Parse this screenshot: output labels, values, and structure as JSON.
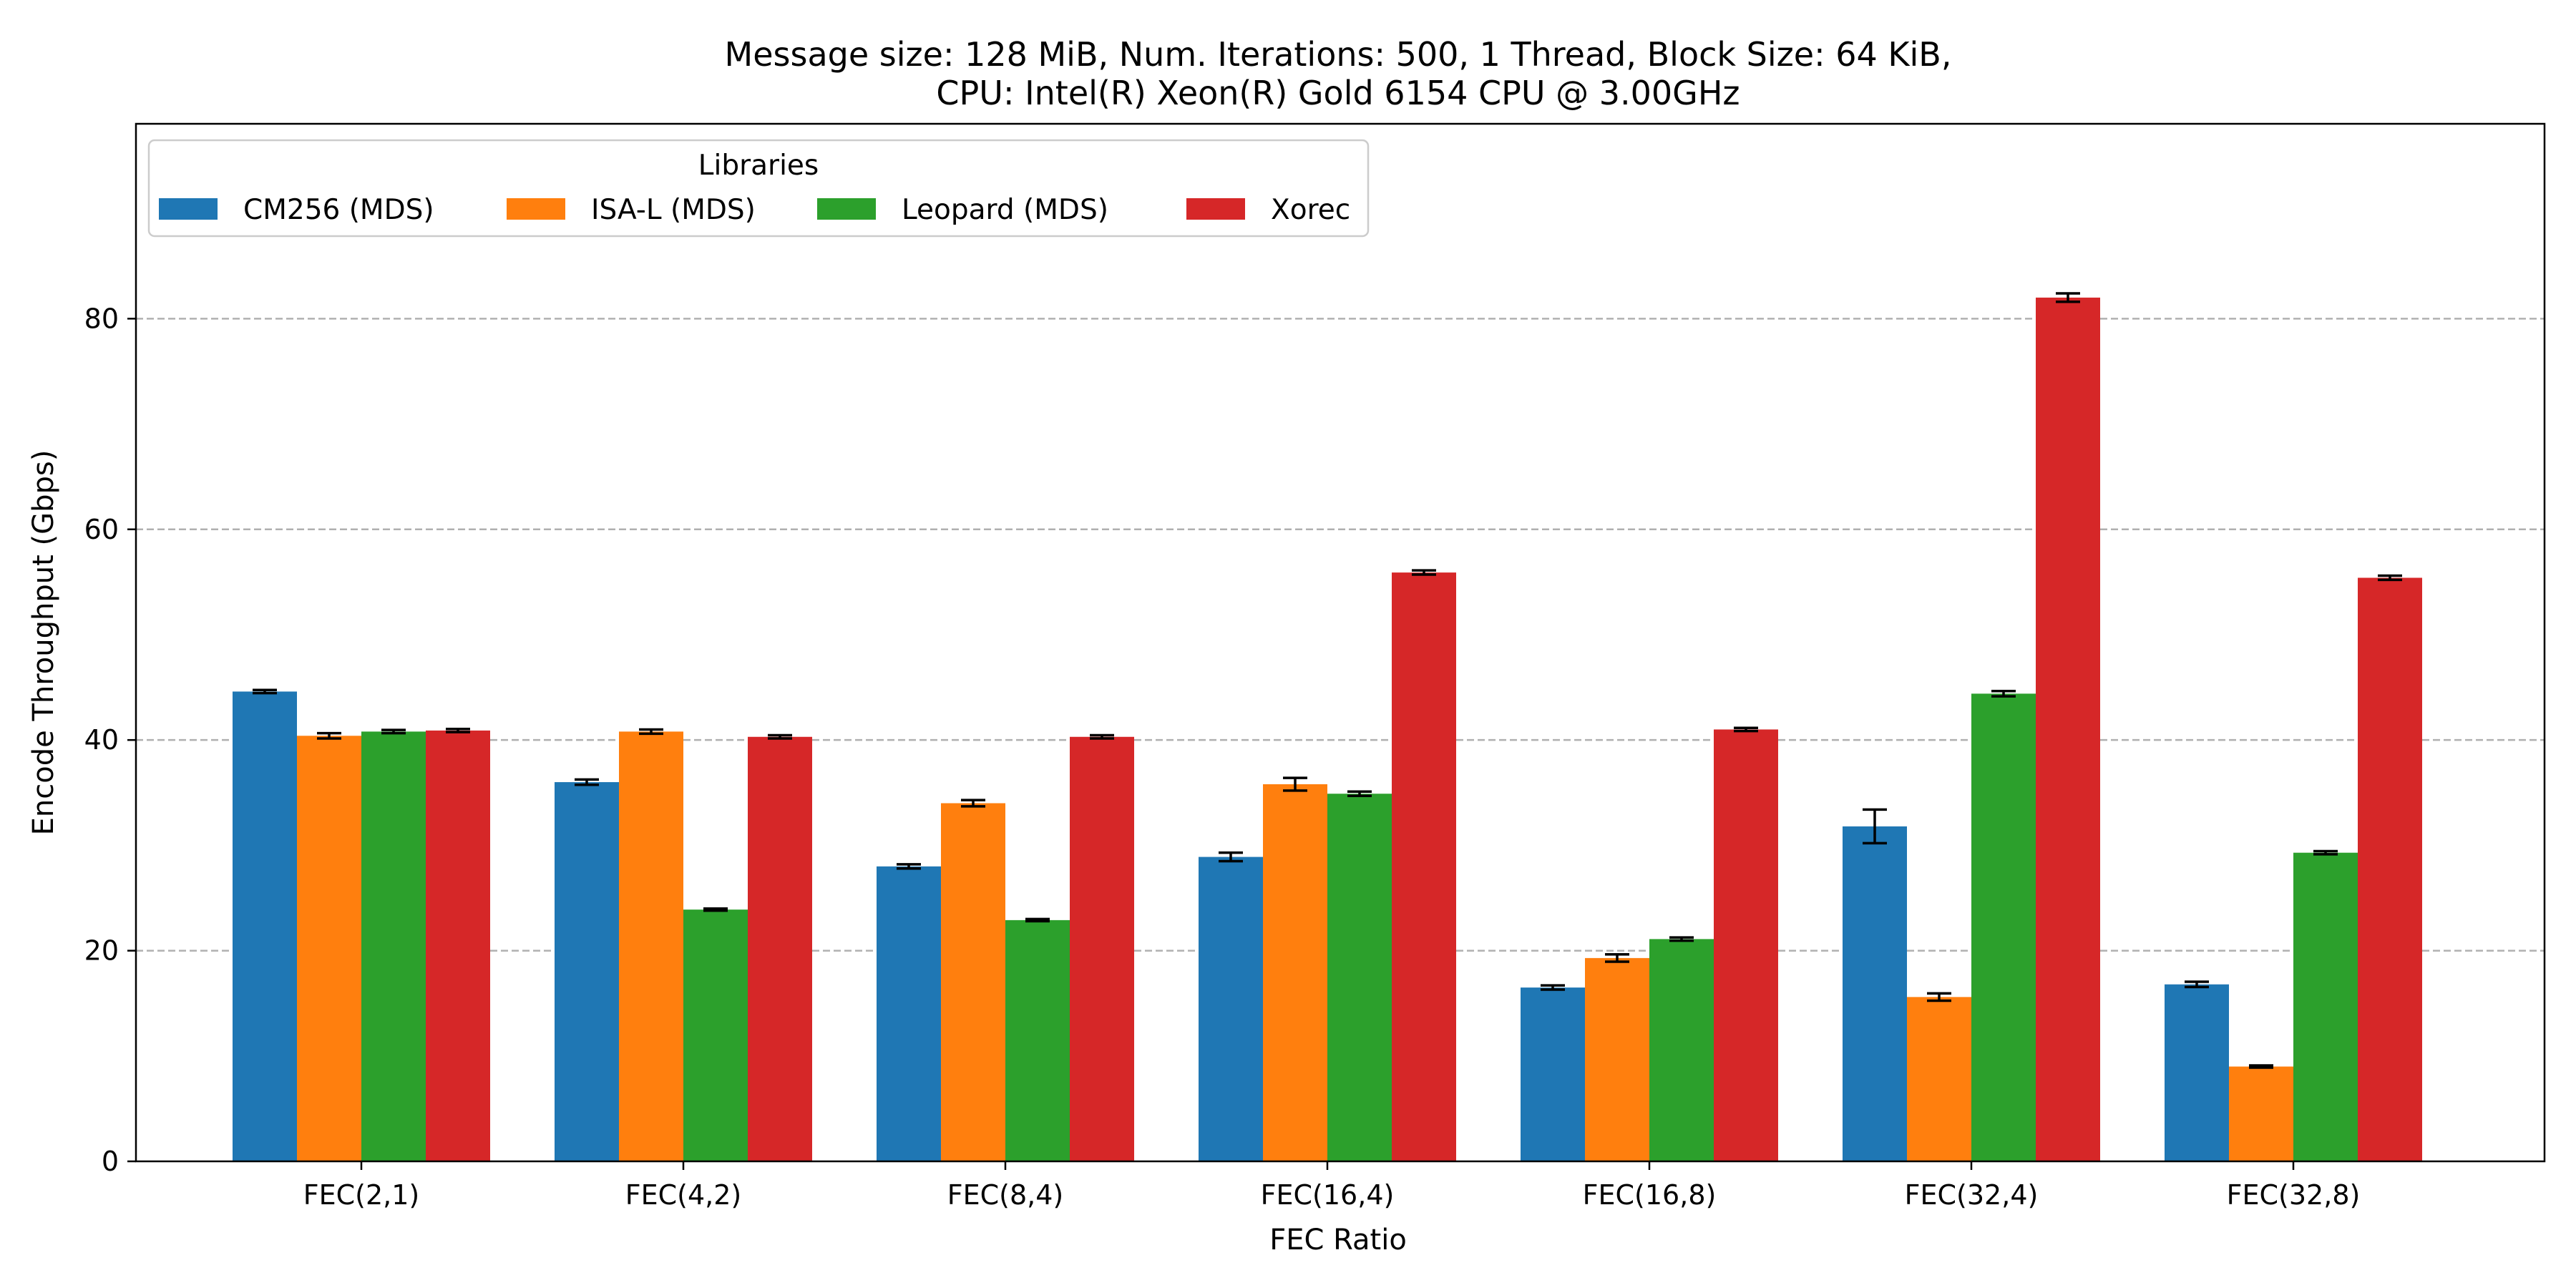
{
  "chart_data": {
    "type": "bar",
    "title_lines": [
      "Message size: 128 MiB, Num. Iterations: 500, 1 Thread, Block Size: 64 KiB,",
      "CPU: Intel(R) Xeon(R) Gold 6154 CPU @ 3.00GHz"
    ],
    "xlabel": "FEC Ratio",
    "ylabel": "Encode Throughput (Gbps)",
    "ylim": [
      0,
      98.5
    ],
    "yticks": [
      0,
      20,
      40,
      60,
      80
    ],
    "grid": "y-dashed",
    "legend": {
      "title": "Libraries",
      "placement": "top-left",
      "columns": 4
    },
    "categories": [
      "FEC(2,1)",
      "FEC(4,2)",
      "FEC(8,4)",
      "FEC(16,4)",
      "FEC(16,8)",
      "FEC(32,4)",
      "FEC(32,8)"
    ],
    "series": [
      {
        "name": "CM256 (MDS)",
        "color": "#1f77b4",
        "values": [
          44.6,
          36.0,
          28.0,
          28.9,
          16.5,
          31.8,
          16.8
        ],
        "errors": [
          0.15,
          0.25,
          0.2,
          0.4,
          0.2,
          1.6,
          0.25
        ]
      },
      {
        "name": "ISA-L (MDS)",
        "color": "#ff7f0e",
        "values": [
          40.4,
          40.8,
          34.0,
          35.8,
          19.3,
          15.6,
          9.0
        ],
        "errors": [
          0.25,
          0.2,
          0.3,
          0.6,
          0.35,
          0.35,
          0.1
        ]
      },
      {
        "name": "Leopard (MDS)",
        "color": "#2ca02c",
        "values": [
          40.8,
          23.9,
          22.9,
          34.9,
          21.1,
          44.4,
          29.3
        ],
        "errors": [
          0.15,
          0.1,
          0.1,
          0.2,
          0.15,
          0.25,
          0.15
        ]
      },
      {
        "name": "Xorec",
        "color": "#d62728",
        "values": [
          40.9,
          40.3,
          40.3,
          55.9,
          41.0,
          82.0,
          55.4
        ],
        "errors": [
          0.15,
          0.15,
          0.15,
          0.2,
          0.15,
          0.4,
          0.2
        ]
      }
    ]
  }
}
